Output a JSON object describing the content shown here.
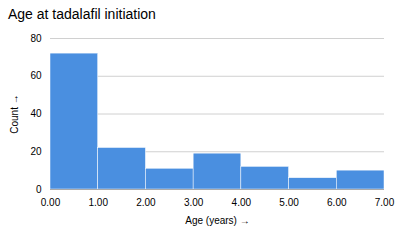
{
  "chart_data": {
    "type": "histogram",
    "title": "Age at tadalafil initiation",
    "xlabel": "Age (years)",
    "ylabel": "Count",
    "bins": [
      0.0,
      1.0,
      2.0,
      3.0,
      4.0,
      5.0,
      6.0,
      7.0
    ],
    "values": [
      72,
      22,
      11,
      19,
      12,
      6,
      10
    ],
    "color": "#4a8fe0",
    "xlim": [
      0.0,
      7.0
    ],
    "xticks": [
      {
        "value": 0.0,
        "label": "0.00"
      },
      {
        "value": 1.0,
        "label": "1.00"
      },
      {
        "value": 2.0,
        "label": "2.00"
      },
      {
        "value": 3.0,
        "label": "3.00"
      },
      {
        "value": 4.0,
        "label": "4.00"
      },
      {
        "value": 5.0,
        "label": "5.00"
      },
      {
        "value": 6.0,
        "label": "6.00"
      },
      {
        "value": 7.0,
        "label": "7.00"
      }
    ],
    "ylim": [
      0,
      80
    ],
    "yticks": [
      0,
      20,
      40,
      60,
      80
    ],
    "grid": true
  }
}
